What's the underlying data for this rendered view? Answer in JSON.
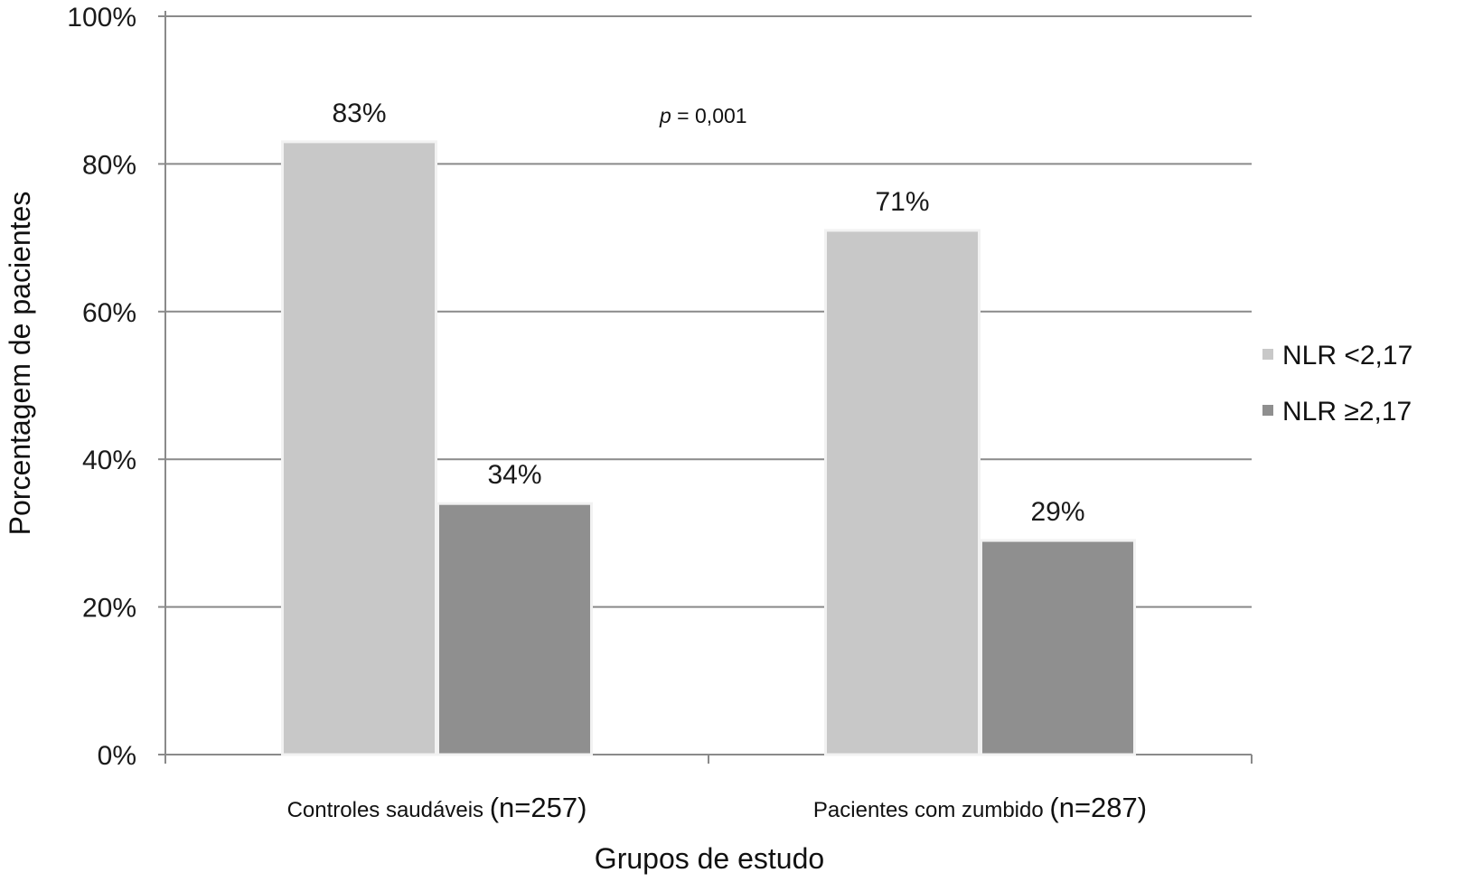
{
  "chart_data": {
    "type": "bar",
    "title": "",
    "xlabel": "Grupos de estudo",
    "ylabel": "Porcentagem de pacientes",
    "ylim": [
      0,
      100
    ],
    "y_ticks": [
      0,
      20,
      40,
      60,
      80,
      100
    ],
    "y_tick_labels": [
      "0%",
      "20%",
      "40%",
      "60%",
      "80%",
      "100%"
    ],
    "grid": true,
    "legend_position": "right",
    "categories": [
      {
        "name": "Controles saudáveis",
        "n_label": "(n=257)"
      },
      {
        "name": "Pacientes com zumbido",
        "n_label": "(n=287)"
      }
    ],
    "series": [
      {
        "name": "NLR <2,17",
        "color": "#c8c8c8",
        "values": [
          83,
          71
        ],
        "labels": [
          "83%",
          "71%"
        ]
      },
      {
        "name": "NLR ≥2,17",
        "color": "#8f8f8f",
        "values": [
          34,
          29
        ],
        "labels": [
          "34%",
          "29%"
        ]
      }
    ],
    "annotation": {
      "italic_part": "p",
      "rest": " = 0,001"
    },
    "colors": {
      "grid": "#8a8a8a",
      "axis": "#8a8a8a",
      "bar_outline": "#f2f2f2"
    }
  }
}
